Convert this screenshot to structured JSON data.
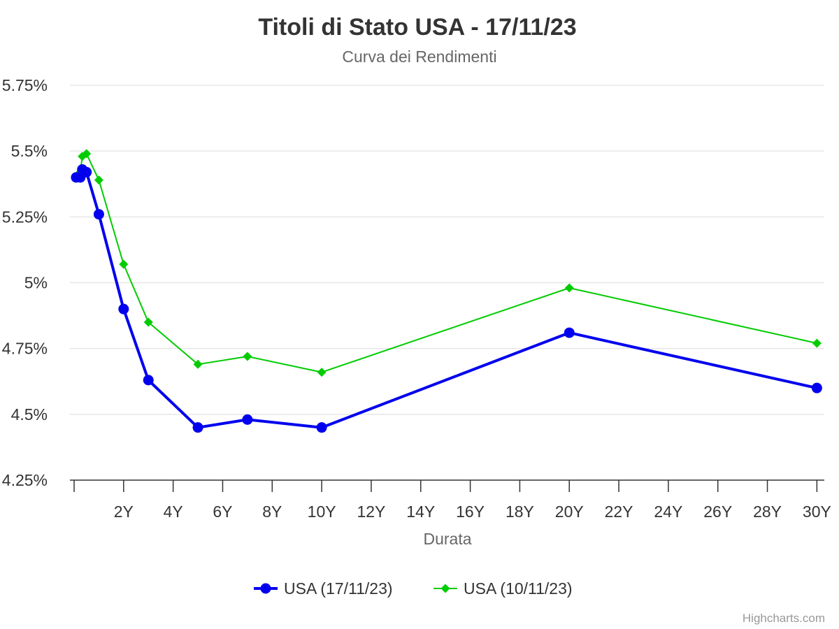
{
  "chart_data": {
    "type": "line",
    "title": "Titoli di Stato USA - 17/11/23",
    "subtitle": "Curva dei Rendimenti",
    "xlabel": "Durata",
    "ylabel": "",
    "xlim": [
      0,
      30.3
    ],
    "ylim": [
      4.25,
      5.75
    ],
    "x_ticks": [
      {
        "value": 2,
        "label": "2Y"
      },
      {
        "value": 4,
        "label": "4Y"
      },
      {
        "value": 6,
        "label": "6Y"
      },
      {
        "value": 8,
        "label": "8Y"
      },
      {
        "value": 10,
        "label": "10Y"
      },
      {
        "value": 12,
        "label": "12Y"
      },
      {
        "value": 14,
        "label": "14Y"
      },
      {
        "value": 16,
        "label": "16Y"
      },
      {
        "value": 18,
        "label": "18Y"
      },
      {
        "value": 20,
        "label": "20Y"
      },
      {
        "value": 22,
        "label": "22Y"
      },
      {
        "value": 24,
        "label": "24Y"
      },
      {
        "value": 26,
        "label": "26Y"
      },
      {
        "value": 28,
        "label": "28Y"
      },
      {
        "value": 30,
        "label": "30Y"
      }
    ],
    "y_ticks": [
      {
        "value": 4.25,
        "label": "4.25%"
      },
      {
        "value": 4.5,
        "label": "4.5%"
      },
      {
        "value": 4.75,
        "label": "4.75%"
      },
      {
        "value": 5,
        "label": "5%"
      },
      {
        "value": 5.25,
        "label": "5.25%"
      },
      {
        "value": 5.5,
        "label": "5.5%"
      },
      {
        "value": 5.75,
        "label": "5.75%"
      }
    ],
    "grid": true,
    "legend_position": "bottom-center",
    "series": [
      {
        "name": "USA (17/11/23)",
        "color": "#0000ee",
        "marker": "circle",
        "points": [
          [
            0.083,
            5.4
          ],
          [
            0.25,
            5.4
          ],
          [
            0.33,
            5.43
          ],
          [
            0.5,
            5.42
          ],
          [
            1,
            5.26
          ],
          [
            2,
            4.9
          ],
          [
            3,
            4.63
          ],
          [
            5,
            4.45
          ],
          [
            7,
            4.48
          ],
          [
            10,
            4.45
          ],
          [
            20,
            4.81
          ],
          [
            30,
            4.6
          ]
        ]
      },
      {
        "name": "USA (10/11/23)",
        "color": "#00cc00",
        "marker": "diamond",
        "points": [
          [
            0.083,
            5.4
          ],
          [
            0.17,
            5.41
          ],
          [
            0.25,
            5.42
          ],
          [
            0.33,
            5.48
          ],
          [
            0.5,
            5.49
          ],
          [
            1,
            5.39
          ],
          [
            2,
            5.07
          ],
          [
            3,
            4.85
          ],
          [
            5,
            4.69
          ],
          [
            7,
            4.72
          ],
          [
            10,
            4.66
          ],
          [
            20,
            4.98
          ],
          [
            30,
            4.77
          ]
        ]
      }
    ]
  },
  "credits": "Highcharts.com"
}
